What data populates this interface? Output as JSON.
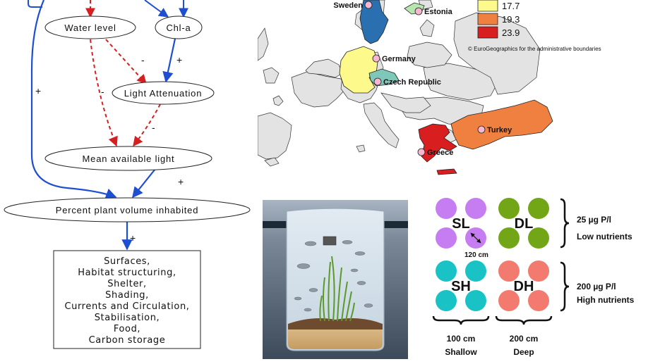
{
  "flowchart": {
    "nodes": {
      "water_level": "Water level",
      "chla": "Chl-a",
      "light_attenuation": "Light Attenuation",
      "mean_light": "Mean available light",
      "pvi": "Percent plant volume inhabited"
    },
    "signs": {
      "water_to_attenuation": "-",
      "chla_to_attenuation": "+",
      "left_long": "+",
      "water_to_light": "-",
      "attenuation_to_light": "-",
      "light_to_pvi": "+",
      "pvi_to_box": "+"
    },
    "outcomes": [
      "Surfaces,",
      "Habitat structuring,",
      "Shelter,",
      "Shading,",
      "Currents and Circulation,",
      "Stabilisation,",
      "Food,",
      "Carbon storage"
    ],
    "colors": {
      "positive": "#1f4fd1",
      "negative": "#d42020"
    }
  },
  "map": {
    "countries": [
      "Sweden",
      "Estonia",
      "Germany",
      "Czech Republic",
      "Turkey",
      "Greece"
    ],
    "legend": [
      {
        "value": "17.7",
        "color": "#fdf98a"
      },
      {
        "value": "19.3",
        "color": "#f08040"
      },
      {
        "value": "23.9",
        "color": "#d81e1e"
      }
    ],
    "copyright": "© EuroGeographics for the administrative boundaries",
    "colors": {
      "Sweden": "#2a6fb0",
      "Estonia": "#b8e6b0",
      "Germany": "#fdf98a",
      "Czech Republic": "#7fc7b8",
      "Turkey": "#f08040",
      "Greece": "#d81e1e",
      "other": "#e3e3e3"
    }
  },
  "design": {
    "treatments": [
      {
        "label": "SL",
        "color": "#c77df2"
      },
      {
        "label": "DL",
        "color": "#72a617"
      },
      {
        "label": "SH",
        "color": "#19c2c4"
      },
      {
        "label": "DH",
        "color": "#f27a6e"
      }
    ],
    "spacing": "120 cm",
    "low": {
      "amount": "25 µg P/l",
      "label": "Low nutrients"
    },
    "high": {
      "amount": "200 µg P/l",
      "label": "High nutrients"
    },
    "shallow": {
      "depth": "100 cm",
      "label": "Shallow"
    },
    "deep": {
      "depth": "200 cm",
      "label": "Deep"
    }
  }
}
